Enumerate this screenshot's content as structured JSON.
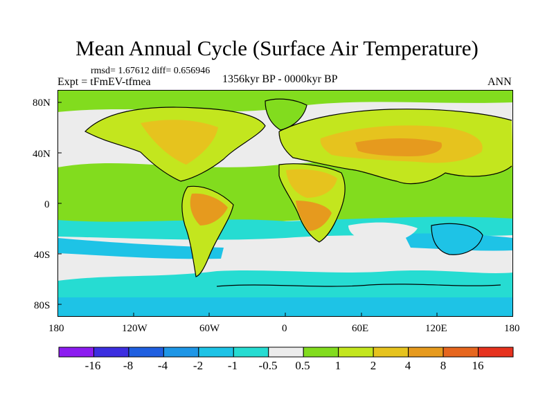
{
  "header": {
    "title": "Mean Annual Cycle (Surface Air Temperature)",
    "stats": "rmsd= 1.67612 diff= 0.656946",
    "experiment": "Expt = tFmEV-tfmea",
    "period": "1356kyr BP - 0000kyr BP",
    "season": "ANN"
  },
  "axes": {
    "y_ticks": [
      "80N",
      "40N",
      "0",
      "40S",
      "80S"
    ],
    "x_ticks": [
      "180",
      "120W",
      "60W",
      "0",
      "60E",
      "120E",
      "180"
    ]
  },
  "colorbar": {
    "labels": [
      "-16",
      "-8",
      "-4",
      "-2",
      "-1",
      "-0.5",
      "0.5",
      "1",
      "2",
      "4",
      "8",
      "16"
    ],
    "colors": [
      "#8c1cf0",
      "#3c2ee0",
      "#1f5fe0",
      "#1e96e6",
      "#1ec3e6",
      "#26dcd2",
      "#ececec",
      "#82dc1e",
      "#c3e61e",
      "#e6c31e",
      "#e69a1e",
      "#e6661e",
      "#e6321e"
    ]
  },
  "map_colors": {
    "ocean_neutral": "#ececec",
    "cool": "#26dcd2",
    "cooler": "#1ec3e6",
    "mild_warm": "#82dc1e",
    "warm": "#c3e61e",
    "warmer": "#e6c31e",
    "hot": "#e69a1e",
    "coast": "#000000"
  }
}
